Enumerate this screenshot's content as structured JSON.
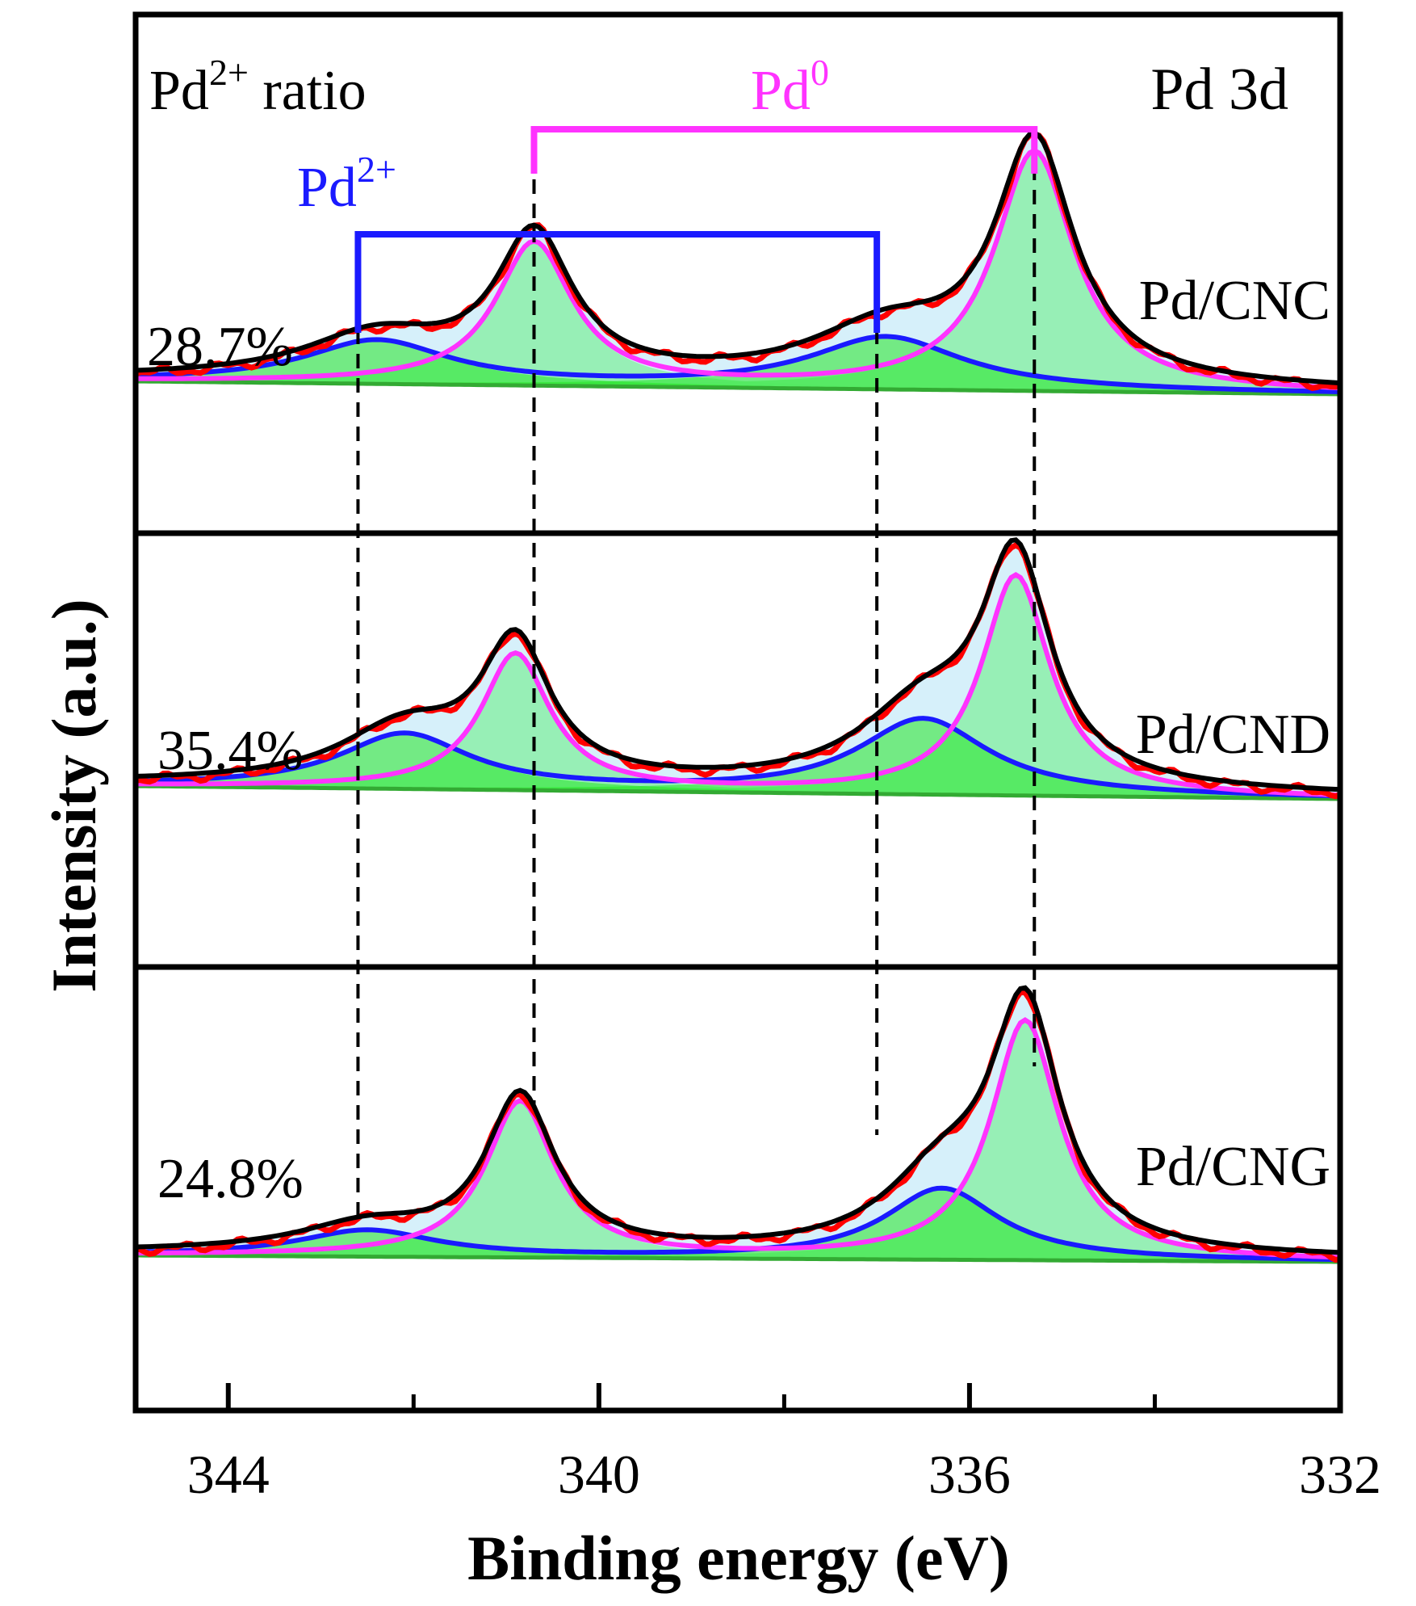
{
  "chart_data": {
    "type": "line",
    "title": "Pd 3d",
    "xlabel": "Binding energy (eV)",
    "ylabel": "Intensity (a.u.)",
    "xlim": [
      345,
      332
    ],
    "x_reversed": true,
    "x_ticks": [
      344,
      340,
      336,
      332
    ],
    "x_minor_ticks": [
      342,
      338,
      334
    ],
    "ratio_header": {
      "base": "Pd",
      "sup": "2+",
      "rest": " ratio"
    },
    "annotations": {
      "pd0": {
        "base": "Pd",
        "sup": "0",
        "color": "#ff33ff",
        "peaks_eV": [
          340.7,
          335.3
        ]
      },
      "pd2": {
        "base": "Pd",
        "sup": "2+",
        "color": "#1a1aff",
        "peaks_eV": [
          342.6,
          337.0
        ]
      }
    },
    "reference_lines_eV": [
      342.6,
      340.7,
      337.0,
      335.3
    ],
    "colors": {
      "raw": "#ff0000",
      "envelope": "#000000",
      "pd0": "#ff33ff",
      "pd2": "#1a1aff",
      "pd0_fill": "#90eeae",
      "pd2_fill": "#22e622",
      "envelope_fill": "#d6f0fa",
      "background_line": "#33aa33"
    },
    "panels": [
      {
        "sample": "Pd/CNC",
        "pd2_ratio": "28.7%",
        "baseline": [
          0.5,
          0.1
        ],
        "pd0_peaks": [
          {
            "center": 340.7,
            "amp": 1.1,
            "width": 0.5
          },
          {
            "center": 335.3,
            "amp": 1.85,
            "width": 0.52
          }
        ],
        "pd2_peaks": [
          {
            "center": 342.4,
            "amp": 0.33,
            "width": 0.95
          },
          {
            "center": 336.9,
            "amp": 0.4,
            "width": 1.0
          }
        ]
      },
      {
        "sample": "Pd/CND",
        "pd2_ratio": "35.4%",
        "baseline": [
          0.35,
          0.1
        ],
        "pd0_peaks": [
          {
            "center": 340.9,
            "amp": 1.05,
            "width": 0.45
          },
          {
            "center": 335.5,
            "amp": 1.7,
            "width": 0.45
          }
        ],
        "pd2_peaks": [
          {
            "center": 342.1,
            "amp": 0.42,
            "width": 0.85
          },
          {
            "center": 336.5,
            "amp": 0.58,
            "width": 0.85
          }
        ]
      },
      {
        "sample": "Pd/CNG",
        "pd2_ratio": "24.8%",
        "baseline": [
          0.3,
          0.05
        ],
        "pd0_peaks": [
          {
            "center": 340.85,
            "amp": 1.2,
            "width": 0.45
          },
          {
            "center": 335.4,
            "amp": 1.85,
            "width": 0.45
          }
        ],
        "pd2_peaks": [
          {
            "center": 342.5,
            "amp": 0.2,
            "width": 0.9
          },
          {
            "center": 336.3,
            "amp": 0.55,
            "width": 0.75
          }
        ]
      }
    ]
  }
}
